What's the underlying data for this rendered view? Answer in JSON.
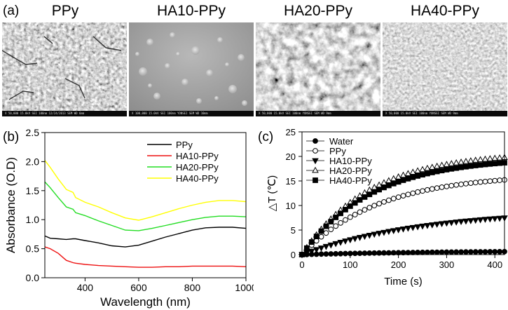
{
  "panels": {
    "a": {
      "label": "(a)",
      "images": [
        {
          "title": "PPy",
          "scale_text": "X 50,000   15.0kV SEI   100nm   12/24/2013   SEM   WD 6mm"
        },
        {
          "title": "HA10-PPy",
          "scale_text": "X 100,000   15.0kV SEI   100nm   YONSEI   SEM   WD 10mm"
        },
        {
          "title": "HA20-PPy",
          "scale_text": "X 50,000   15.0kV SEI   100nm   YONSEI   SEM   WD 9mm"
        },
        {
          "title": "HA40-PPy",
          "scale_text": "X 50,000   15.0kV SEI   100nm   YONSEI   SEM   WD 9mm"
        }
      ]
    },
    "b": {
      "label": "(b)"
    },
    "c": {
      "label": "(c)"
    }
  },
  "chart_data": [
    {
      "type": "line",
      "title": "",
      "xlabel": "Wavelength (nm)",
      "ylabel": "Absorbance (O.D)",
      "xlim": [
        250,
        1000
      ],
      "ylim": [
        0.0,
        2.5
      ],
      "xticks": [
        400,
        600,
        800,
        1000
      ],
      "yticks": [
        0.0,
        0.5,
        1.0,
        1.5,
        2.0,
        2.5
      ],
      "tick_labels_x": [
        "400",
        "600",
        "800",
        "1000"
      ],
      "tick_labels_y": [
        "0.0",
        "0.5",
        "1.0",
        "1.5",
        "2.0",
        "2.5"
      ],
      "legend_position": "top-right",
      "x": [
        250,
        270,
        300,
        330,
        355,
        365,
        400,
        450,
        500,
        550,
        600,
        650,
        700,
        750,
        800,
        850,
        900,
        950,
        1000
      ],
      "series": [
        {
          "name": "PPy",
          "color": "#000000",
          "values": [
            0.72,
            0.68,
            0.67,
            0.66,
            0.67,
            0.67,
            0.64,
            0.6,
            0.55,
            0.53,
            0.56,
            0.63,
            0.7,
            0.76,
            0.82,
            0.86,
            0.87,
            0.87,
            0.85
          ]
        },
        {
          "name": "HA10-PPy",
          "color": "#ee1111",
          "values": [
            0.53,
            0.5,
            0.42,
            0.3,
            0.26,
            0.25,
            0.23,
            0.21,
            0.2,
            0.19,
            0.18,
            0.18,
            0.19,
            0.19,
            0.2,
            0.2,
            0.2,
            0.2,
            0.19
          ]
        },
        {
          "name": "HA20-PPy",
          "color": "#22dd22",
          "values": [
            1.65,
            1.55,
            1.38,
            1.22,
            1.18,
            1.12,
            1.07,
            0.98,
            0.9,
            0.82,
            0.81,
            0.85,
            0.9,
            0.95,
            1.0,
            1.04,
            1.06,
            1.06,
            1.05
          ]
        },
        {
          "name": "HA40-PPy",
          "color": "#ffff00",
          "values": [
            2.02,
            1.9,
            1.7,
            1.52,
            1.47,
            1.38,
            1.3,
            1.22,
            1.12,
            1.03,
            0.99,
            1.05,
            1.12,
            1.19,
            1.25,
            1.3,
            1.33,
            1.33,
            1.31
          ]
        }
      ]
    },
    {
      "type": "scatter",
      "title": "",
      "xlabel": "Time (s)",
      "ylabel": "△T (℃)",
      "xlim": [
        0,
        420
      ],
      "ylim": [
        0,
        25
      ],
      "xticks": [
        0,
        100,
        200,
        300,
        400
      ],
      "yticks": [
        0,
        5,
        10,
        15,
        20,
        25
      ],
      "tick_labels_x": [
        "0",
        "100",
        "200",
        "300",
        "400"
      ],
      "tick_labels_y": [
        "0",
        "5",
        "10",
        "15",
        "20",
        "25"
      ],
      "legend_position": "top-left",
      "sample_interval_s": 10,
      "sample_count": 43,
      "series": [
        {
          "name": "Water",
          "marker": "filled-circle",
          "color": "#000000",
          "plateau": 0.8,
          "time_constant": 300
        },
        {
          "name": "PPy",
          "marker": "open-circle",
          "color": "#000000",
          "plateau": 16.4,
          "time_constant": 160
        },
        {
          "name": "HA10-PPy",
          "marker": "filled-triangle-down",
          "color": "#000000",
          "plateau": 9.2,
          "time_constant": 250
        },
        {
          "name": "HA20-PPy",
          "marker": "open-triangle-up",
          "color": "#000000",
          "plateau": 20.8,
          "time_constant": 140
        },
        {
          "name": "HA40-PPy",
          "marker": "filled-square",
          "color": "#000000",
          "plateau": 19.8,
          "time_constant": 145
        }
      ]
    }
  ]
}
